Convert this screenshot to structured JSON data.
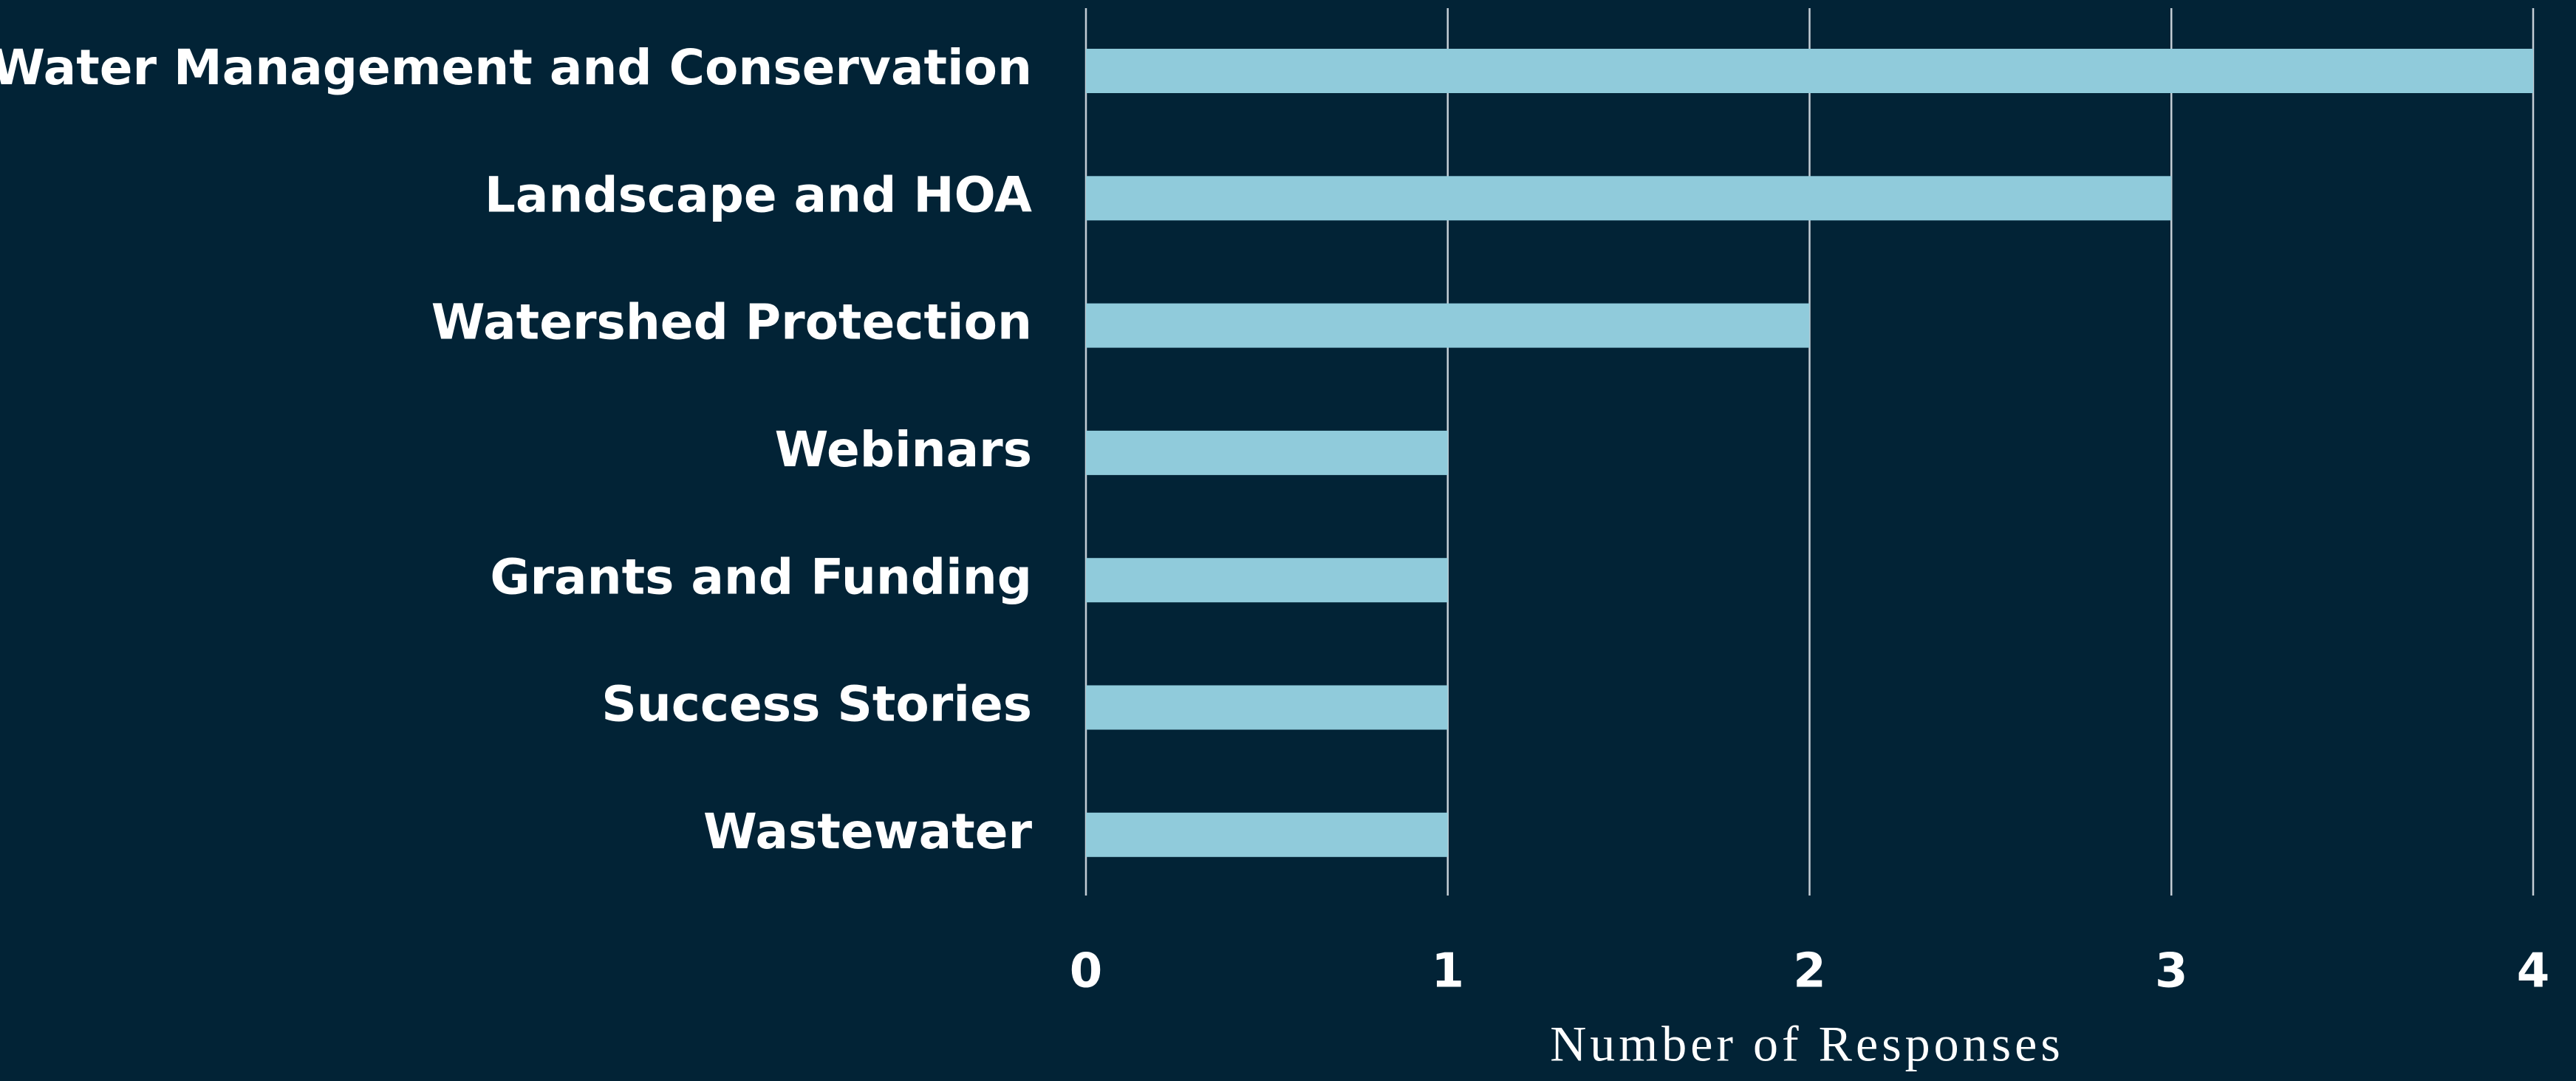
{
  "chart_data": {
    "type": "bar",
    "orientation": "horizontal",
    "x_label": "Number of Responses",
    "categories": [
      "Water Management and Conservation",
      "Landscape and HOA",
      "Watershed Protection",
      "Webinars",
      "Grants and Funding",
      "Success Stories",
      "Wastewater"
    ],
    "values": [
      4,
      3,
      2,
      1,
      1,
      1,
      1
    ],
    "color": "#90cbdb",
    "xlim": [
      0,
      4
    ],
    "xticks": [
      0,
      1,
      2,
      3,
      4
    ],
    "grid": true
  }
}
